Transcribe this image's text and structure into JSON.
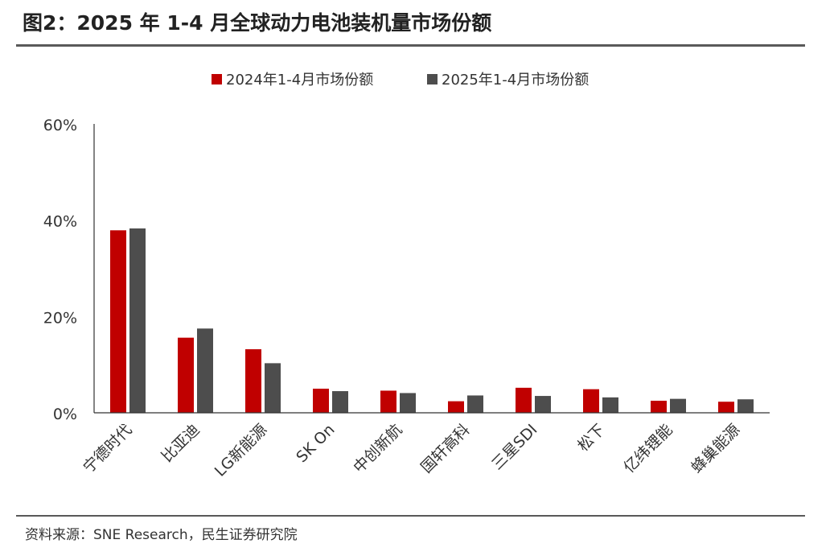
{
  "header": {
    "title": "图2：2025 年 1-4 月全球动力电池装机量市场份额"
  },
  "footer": {
    "source": "资料来源：SNE Research，民生证券研究院"
  },
  "chart_data": {
    "type": "bar",
    "title": "",
    "xlabel": "",
    "ylabel": "",
    "ylim": [
      0,
      60
    ],
    "y_ticks": [
      "0%",
      "20%",
      "40%",
      "60%"
    ],
    "y_tick_values": [
      0,
      20,
      40,
      60
    ],
    "legend_position": "top-center",
    "grid": false,
    "categories": [
      "宁德时代",
      "比亚迪",
      "LG新能源",
      "SK On",
      "中创新航",
      "国轩高科",
      "三星SDI",
      "松下",
      "亿纬锂能",
      "蜂巢能源"
    ],
    "series": [
      {
        "name": "2024年1-4月市场份额",
        "color": "#C00000",
        "values": [
          37.9,
          15.6,
          13.2,
          5.0,
          4.6,
          2.4,
          5.2,
          4.9,
          2.5,
          2.3
        ]
      },
      {
        "name": "2025年1-4月市场份额",
        "color": "#4D4D4D",
        "values": [
          38.3,
          17.5,
          10.3,
          4.5,
          4.1,
          3.6,
          3.5,
          3.2,
          2.9,
          2.8
        ]
      }
    ]
  }
}
